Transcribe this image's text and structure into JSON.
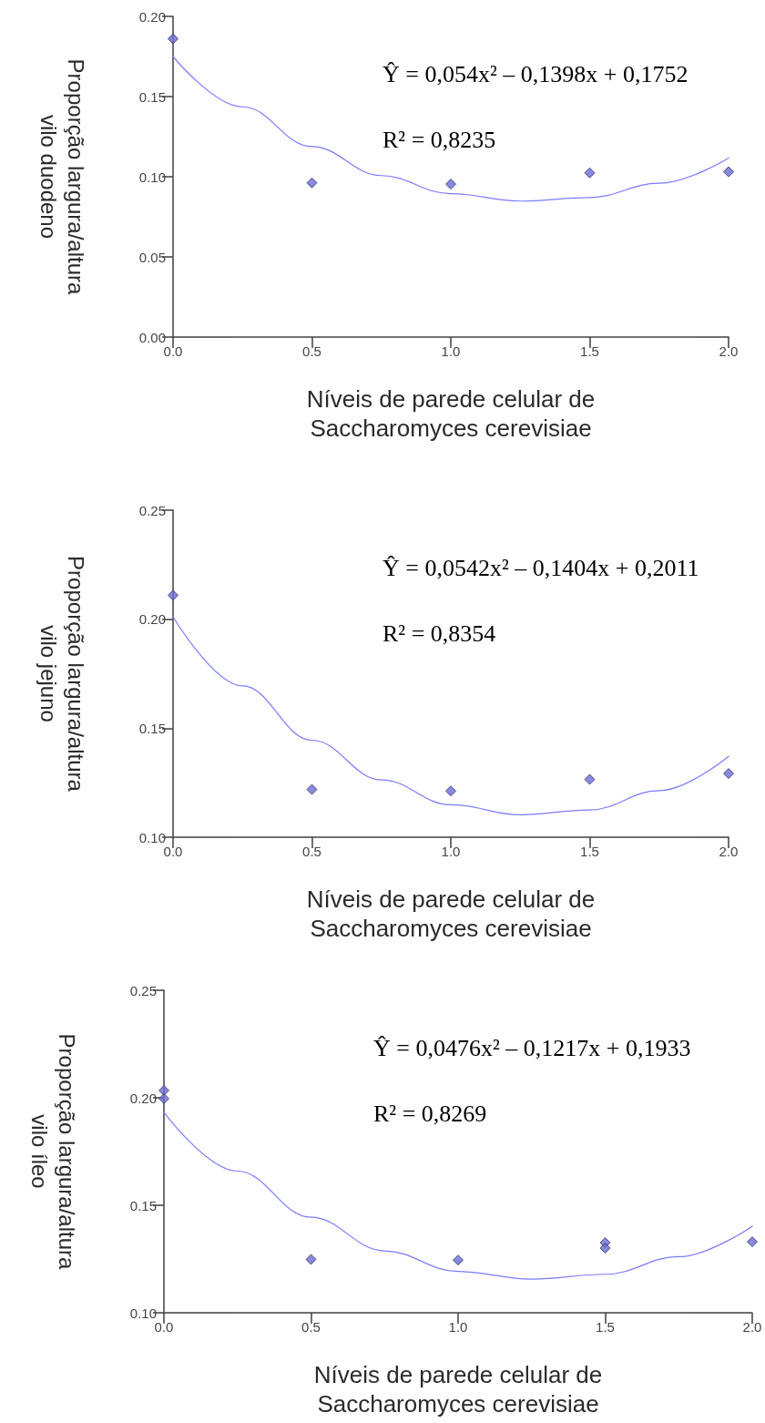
{
  "chart_data": [
    {
      "type": "scatter",
      "xlabel": "Níveis de parede celular de\nSaccharomyces cerevisiae",
      "ylabel": "Proporção largura/altura\nvilo duodeno",
      "xlim": [
        0,
        2
      ],
      "xticks": [
        {
          "value": 0,
          "label": "0.0"
        },
        {
          "value": 0.5,
          "label": "0.5"
        },
        {
          "value": 1,
          "label": "1.0"
        },
        {
          "value": 1.5,
          "label": "1.5"
        },
        {
          "value": 2,
          "label": "2.0"
        }
      ],
      "ylim": [
        0,
        0.2
      ],
      "yticks": [
        {
          "value": 0,
          "label": "0.00"
        },
        {
          "value": 0.05,
          "label": "0.05"
        },
        {
          "value": 0.1,
          "label": "0.10"
        },
        {
          "value": 0.15,
          "label": "0.15"
        },
        {
          "value": 0.2,
          "label": "0.20"
        }
      ],
      "grid": false,
      "annotations": [
        "Ŷ = 0,054x² – 0,1398x + 0,1752",
        "R² = 0,8235"
      ],
      "series": [
        {
          "marker": "diamond",
          "color": "#6b6bd6",
          "x": [
            0,
            0.5,
            1,
            1.5,
            2
          ],
          "values": [
            0.186,
            0.0962,
            0.0954,
            0.1024,
            0.1031
          ]
        },
        {
          "type": "line",
          "marker": "none",
          "color": "#7b7bff",
          "x": [
            0,
            0.25,
            0.5,
            0.75,
            1,
            1.25,
            1.5,
            1.75,
            2
          ],
          "values": [
            0.175,
            0.1436,
            0.1188,
            0.1007,
            0.0894,
            0.0848,
            0.087,
            0.0959,
            0.1116
          ]
        }
      ]
    },
    {
      "type": "scatter",
      "xlabel": "Níveis de parede celular de\nSaccharomyces cerevisiae",
      "ylabel": "Proporção largura/altura\nvilo jejuno",
      "xlim": [
        0,
        2
      ],
      "xticks": [
        {
          "value": 0,
          "label": "0.0"
        },
        {
          "value": 0.5,
          "label": "0.5"
        },
        {
          "value": 1,
          "label": "1.0"
        },
        {
          "value": 1.5,
          "label": "1.5"
        },
        {
          "value": 2,
          "label": "2.0"
        }
      ],
      "ylim": [
        0.1,
        0.25
      ],
      "yticks": [
        {
          "value": 0.1,
          "label": "0.10"
        },
        {
          "value": 0.15,
          "label": "0.15"
        },
        {
          "value": 0.2,
          "label": "0.20"
        },
        {
          "value": 0.25,
          "label": "0.25"
        }
      ],
      "grid": false,
      "annotations": [
        "Ŷ = 0,0542x² – 0,1404x + 0,2011",
        "R² = 0,8354"
      ],
      "series": [
        {
          "marker": "diamond",
          "color": "#6b6bd6",
          "x": [
            0,
            0.5,
            1,
            1.5,
            2
          ],
          "values": [
            0.211,
            0.1219,
            0.1212,
            0.1265,
            0.1292
          ]
        },
        {
          "type": "line",
          "marker": "none",
          "color": "#7b7bff",
          "x": [
            0,
            0.25,
            0.5,
            0.75,
            1,
            1.25,
            1.5,
            1.75,
            2
          ],
          "values": [
            0.2011,
            0.1694,
            0.1445,
            0.1263,
            0.1149,
            0.1103,
            0.1125,
            0.1214,
            0.1371
          ]
        }
      ]
    },
    {
      "type": "scatter",
      "xlabel": "Níveis de parede celular de\nSaccharomyces cerevisiae",
      "ylabel": "Proporção largura/altura\nvilo íleo",
      "xlim": [
        0,
        2
      ],
      "xticks": [
        {
          "value": 0,
          "label": "0.0"
        },
        {
          "value": 0.5,
          "label": "0.5"
        },
        {
          "value": 1,
          "label": "1.0"
        },
        {
          "value": 1.5,
          "label": "1.5"
        },
        {
          "value": 2,
          "label": "2.0"
        }
      ],
      "ylim": [
        0.1,
        0.25
      ],
      "yticks": [
        {
          "value": 0.1,
          "label": "0.10"
        },
        {
          "value": 0.15,
          "label": "0.15"
        },
        {
          "value": 0.2,
          "label": "0.20"
        },
        {
          "value": 0.25,
          "label": "0.25"
        }
      ],
      "grid": false,
      "annotations": [
        "Ŷ = 0,0476x² – 0,1217x + 0,1933",
        "R² = 0,8269"
      ],
      "series": [
        {
          "marker": "diamond",
          "color": "#6b6bd6",
          "x": [
            0,
            0,
            0.5,
            1,
            1.5,
            1.5,
            2
          ],
          "values": [
            0.2034,
            0.1996,
            0.1248,
            0.1245,
            0.1326,
            0.1301,
            0.133
          ]
        },
        {
          "type": "line",
          "marker": "none",
          "color": "#7b7bff",
          "x": [
            0,
            0.25,
            0.5,
            0.75,
            1,
            1.25,
            1.5,
            1.75,
            2
          ],
          "values": [
            0.1933,
            0.1659,
            0.1444,
            0.1288,
            0.1192,
            0.1156,
            0.1179,
            0.1261,
            0.1403
          ]
        }
      ]
    }
  ]
}
